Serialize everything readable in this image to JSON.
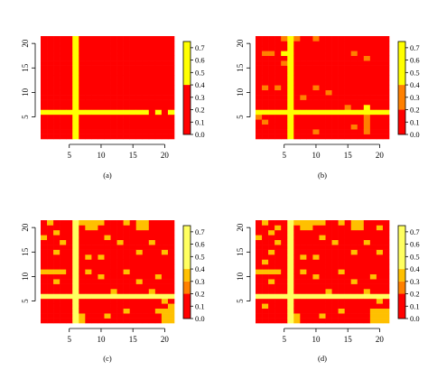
{
  "chart_data": [
    {
      "type": "heatmap",
      "panel_label": "(a)",
      "x_ticks": [
        5,
        10,
        15,
        20
      ],
      "y_ticks": [
        5,
        10,
        15,
        20
      ],
      "xlim": [
        0.5,
        21.5
      ],
      "ylim": [
        0.5,
        21.5
      ],
      "colorbar": {
        "ticks": [
          "0.0",
          "0.1",
          "0.2",
          "0.3",
          "0.4",
          "0.5",
          "0.6",
          "0.7"
        ],
        "range": [
          0,
          0.75
        ],
        "bands": [
          {
            "from": 0.0,
            "to": 0.4,
            "color": "#FF0000"
          },
          {
            "from": 0.4,
            "to": 0.75,
            "color": "#FFFF00"
          }
        ]
      },
      "default_value": 0.0,
      "grid_values": [
        {
          "x": 6,
          "y": [
            1,
            21
          ],
          "value": 0.7
        },
        {
          "x": [
            1,
            17
          ],
          "y": 6,
          "value": 0.7
        },
        {
          "x": 19,
          "y": 6,
          "value": 0.7
        },
        {
          "x": 21,
          "y": 6,
          "value": 0.7
        },
        {
          "x": 6,
          "y": 21,
          "value": 0.7
        },
        {
          "x": 6,
          "y": 19,
          "value": 0.7
        }
      ]
    },
    {
      "type": "heatmap",
      "panel_label": "(b)",
      "x_ticks": [
        5,
        10,
        15,
        20
      ],
      "y_ticks": [
        5,
        10,
        15,
        20
      ],
      "xlim": [
        0.5,
        21.5
      ],
      "ylim": [
        0.5,
        21.5
      ],
      "colorbar": {
        "ticks": [
          "0.0",
          "0.1",
          "0.2",
          "0.3",
          "0.4",
          "0.5",
          "0.6",
          "0.7"
        ],
        "range": [
          0,
          0.75
        ],
        "bands": [
          {
            "from": 0.0,
            "to": 0.2,
            "color": "#FF0000"
          },
          {
            "from": 0.2,
            "to": 0.4,
            "color": "#FF8000"
          },
          {
            "from": 0.4,
            "to": 0.75,
            "color": "#FFFF00"
          }
        ]
      },
      "default_value": 0.0,
      "grid_values": [
        {
          "x": 6,
          "y": [
            1,
            21
          ],
          "value": 0.7
        },
        {
          "x": [
            1,
            21
          ],
          "y": 6,
          "value": 0.7
        },
        {
          "x": 5,
          "y": 21,
          "value": 0.3
        },
        {
          "x": 7,
          "y": 21,
          "value": 0.3
        },
        {
          "x": 10,
          "y": 21,
          "value": 0.3
        },
        {
          "x": 2,
          "y": 18,
          "value": 0.3
        },
        {
          "x": 3,
          "y": 18,
          "value": 0.3
        },
        {
          "x": 5,
          "y": 18,
          "value": 0.7
        },
        {
          "x": 16,
          "y": 18,
          "value": 0.3
        },
        {
          "x": 18,
          "y": 17,
          "value": 0.3
        },
        {
          "x": 5,
          "y": 16,
          "value": 0.3
        },
        {
          "x": 2,
          "y": 11,
          "value": 0.3
        },
        {
          "x": 4,
          "y": 11,
          "value": 0.3
        },
        {
          "x": 10,
          "y": 11,
          "value": 0.3
        },
        {
          "x": 12,
          "y": 10,
          "value": 0.3
        },
        {
          "x": 8,
          "y": 9,
          "value": 0.3
        },
        {
          "x": 10,
          "y": 2,
          "value": 0.3
        },
        {
          "x": 18,
          "y": 7,
          "value": 0.7
        },
        {
          "x": 18,
          "y": [
            2,
            5
          ],
          "value": 0.3
        },
        {
          "x": 16,
          "y": 3,
          "value": 0.3
        },
        {
          "x": 1,
          "y": 5,
          "value": 0.3
        },
        {
          "x": 2,
          "y": 4,
          "value": 0.3
        },
        {
          "x": 15,
          "y": 7,
          "value": 0.3
        }
      ]
    },
    {
      "type": "heatmap",
      "panel_label": "(c)",
      "x_ticks": [
        5,
        10,
        15,
        20
      ],
      "y_ticks": [
        5,
        10,
        15,
        20
      ],
      "xlim": [
        0.5,
        21.5
      ],
      "ylim": [
        0.5,
        21.5
      ],
      "colorbar": {
        "ticks": [
          "0.0",
          "0.1",
          "0.2",
          "0.3",
          "0.4",
          "0.5",
          "0.6",
          "0.7"
        ],
        "range": [
          0,
          0.75
        ],
        "bands": [
          {
            "from": 0.0,
            "to": 0.2,
            "color": "#FF0000"
          },
          {
            "from": 0.2,
            "to": 0.3,
            "color": "#FF8000"
          },
          {
            "from": 0.3,
            "to": 0.4,
            "color": "#FFC000"
          },
          {
            "from": 0.4,
            "to": 0.75,
            "color": "#FFFF60"
          }
        ]
      },
      "default_value": 0.0,
      "grid_values": [
        {
          "x": 6,
          "y": [
            1,
            21
          ],
          "value": 0.7
        },
        {
          "x": [
            1,
            21
          ],
          "y": 6,
          "value": 0.7
        },
        {
          "x": 6,
          "y": 20,
          "value": 0.7
        },
        {
          "x": 2,
          "y": 21,
          "value": 0.3
        },
        {
          "x": 7,
          "y": 21,
          "value": 0.3
        },
        {
          "x": 8,
          "y": [
            20,
            21
          ],
          "value": 0.3
        },
        {
          "x": 9,
          "y": [
            20,
            21
          ],
          "value": 0.3
        },
        {
          "x": 10,
          "y": 21,
          "value": 0.3
        },
        {
          "x": 14,
          "y": 21,
          "value": 0.3
        },
        {
          "x": 16,
          "y": [
            20,
            21
          ],
          "value": 0.3
        },
        {
          "x": 17,
          "y": [
            20,
            21
          ],
          "value": 0.3
        },
        {
          "x": 18,
          "y": 17,
          "value": 0.3
        },
        {
          "x": 3,
          "y": 19,
          "value": 0.3
        },
        {
          "x": 1,
          "y": 18,
          "value": 0.3
        },
        {
          "x": 4,
          "y": 17,
          "value": 0.3
        },
        {
          "x": 11,
          "y": 18,
          "value": 0.3
        },
        {
          "x": 13,
          "y": 17,
          "value": 0.3
        },
        {
          "x": 3,
          "y": 15,
          "value": 0.3
        },
        {
          "x": 8,
          "y": 14,
          "value": 0.3
        },
        {
          "x": 10,
          "y": 14,
          "value": 0.3
        },
        {
          "x": 16,
          "y": 15,
          "value": 0.3
        },
        {
          "x": 20,
          "y": 15,
          "value": 0.3
        },
        {
          "x": [
            1,
            4
          ],
          "y": 11,
          "value": 0.3
        },
        {
          "x": 8,
          "y": 11,
          "value": 0.3
        },
        {
          "x": 10,
          "y": 10,
          "value": 0.3
        },
        {
          "x": 14,
          "y": 11,
          "value": 0.3
        },
        {
          "x": 3,
          "y": 9,
          "value": 0.3
        },
        {
          "x": 16,
          "y": 9,
          "value": 0.3
        },
        {
          "x": 19,
          "y": 10,
          "value": 0.3
        },
        {
          "x": 12,
          "y": 7,
          "value": 0.3
        },
        {
          "x": 18,
          "y": 7,
          "value": 0.3
        },
        {
          "x": 20,
          "y": 5,
          "value": 0.3
        },
        {
          "x": 11,
          "y": 2,
          "value": 0.3
        },
        {
          "x": 14,
          "y": 3,
          "value": 0.3
        },
        {
          "x": 20,
          "y": [
            1,
            3
          ],
          "value": 0.3
        },
        {
          "x": 21,
          "y": [
            1,
            4
          ],
          "value": 0.3
        },
        {
          "x": 19,
          "y": 3,
          "value": 0.3
        },
        {
          "x": 7,
          "y": [
            1,
            2
          ],
          "value": 0.3
        }
      ]
    },
    {
      "type": "heatmap",
      "panel_label": "(d)",
      "x_ticks": [
        5,
        10,
        15,
        20
      ],
      "y_ticks": [
        5,
        10,
        15,
        20
      ],
      "xlim": [
        0.5,
        21.5
      ],
      "ylim": [
        0.5,
        21.5
      ],
      "colorbar": {
        "ticks": [
          "0.0",
          "0.1",
          "0.2",
          "0.3",
          "0.4",
          "0.5",
          "0.6",
          "0.7"
        ],
        "range": [
          0,
          0.75
        ],
        "bands": [
          {
            "from": 0.0,
            "to": 0.2,
            "color": "#FF0000"
          },
          {
            "from": 0.2,
            "to": 0.3,
            "color": "#FF8000"
          },
          {
            "from": 0.3,
            "to": 0.4,
            "color": "#FFC000"
          },
          {
            "from": 0.4,
            "to": 0.75,
            "color": "#FFFF60"
          }
        ]
      },
      "default_value": 0.0,
      "grid_values": [
        {
          "x": 6,
          "y": [
            1,
            21
          ],
          "value": 0.7
        },
        {
          "x": [
            1,
            21
          ],
          "y": 6,
          "value": 0.7
        },
        {
          "x": 2,
          "y": 21,
          "value": 0.3
        },
        {
          "x": 4,
          "y": 20,
          "value": 0.3
        },
        {
          "x": 7,
          "y": 21,
          "value": 0.3
        },
        {
          "x": [
            8,
            11
          ],
          "y": 21,
          "value": 0.3
        },
        {
          "x": [
            8,
            9
          ],
          "y": 20,
          "value": 0.3
        },
        {
          "x": 14,
          "y": 21,
          "value": 0.3
        },
        {
          "x": [
            16,
            17
          ],
          "y": [
            20,
            21
          ],
          "value": 0.3
        },
        {
          "x": 20,
          "y": 20,
          "value": 0.3
        },
        {
          "x": 3,
          "y": 19,
          "value": 0.3
        },
        {
          "x": 1,
          "y": 18,
          "value": 0.3
        },
        {
          "x": 4,
          "y": 17,
          "value": 0.3
        },
        {
          "x": 11,
          "y": 18,
          "value": 0.3
        },
        {
          "x": 13,
          "y": 17,
          "value": 0.3
        },
        {
          "x": 18,
          "y": 17,
          "value": 0.3
        },
        {
          "x": 3,
          "y": 15,
          "value": 0.3
        },
        {
          "x": 8,
          "y": 14,
          "value": 0.3
        },
        {
          "x": 10,
          "y": 14,
          "value": 0.3
        },
        {
          "x": 16,
          "y": 15,
          "value": 0.3
        },
        {
          "x": 20,
          "y": 15,
          "value": 0.3
        },
        {
          "x": 2,
          "y": 13,
          "value": 0.3
        },
        {
          "x": [
            1,
            4
          ],
          "y": 11,
          "value": 0.3
        },
        {
          "x": 8,
          "y": 11,
          "value": 0.3
        },
        {
          "x": 10,
          "y": 10,
          "value": 0.3
        },
        {
          "x": 14,
          "y": 11,
          "value": 0.3
        },
        {
          "x": 3,
          "y": 9,
          "value": 0.3
        },
        {
          "x": 16,
          "y": 9,
          "value": 0.3
        },
        {
          "x": 19,
          "y": 10,
          "value": 0.3
        },
        {
          "x": 12,
          "y": 7,
          "value": 0.3
        },
        {
          "x": 18,
          "y": 7,
          "value": 0.3
        },
        {
          "x": 20,
          "y": 5,
          "value": 0.3
        },
        {
          "x": 11,
          "y": 2,
          "value": 0.3
        },
        {
          "x": 14,
          "y": 3,
          "value": 0.3
        },
        {
          "x": [
            19,
            21
          ],
          "y": [
            1,
            3
          ],
          "value": 0.3
        },
        {
          "x": 7,
          "y": [
            1,
            2
          ],
          "value": 0.3
        },
        {
          "x": 2,
          "y": 4,
          "value": 0.3
        }
      ]
    }
  ]
}
